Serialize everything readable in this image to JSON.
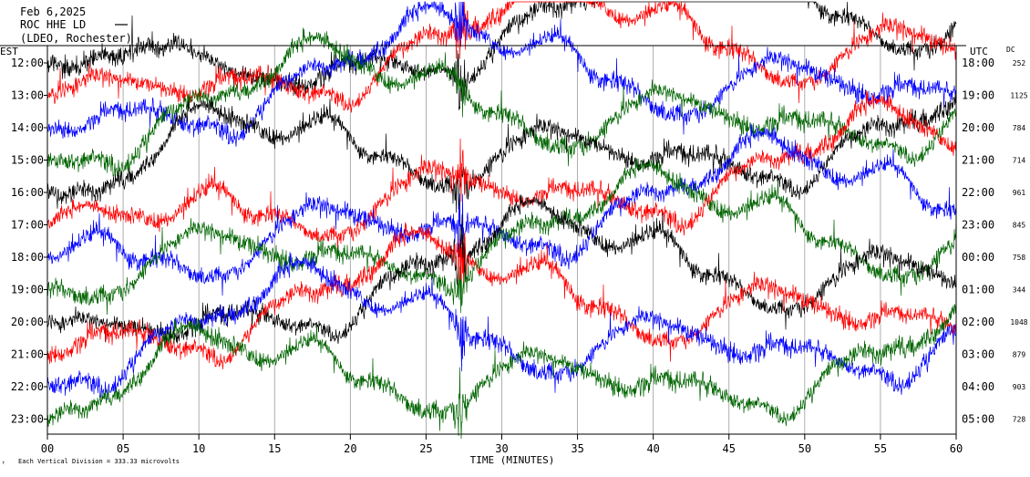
{
  "header": {
    "date": "Feb 6,2025",
    "station": "ROC HHE LD",
    "network": "(LDEO, Rochester)"
  },
  "labels": {
    "left_tz": "EST",
    "right_tz": "UTC",
    "dc_header": "DC",
    "x_axis_title": "TIME (MINUTES)",
    "scale_note": "Each Vertical Division = 333.33 microvolts"
  },
  "colors": {
    "black": "#000000",
    "red": "#ff0000",
    "blue": "#0000ff",
    "green": "#006400"
  },
  "chart_data": {
    "type": "line",
    "x_range_minutes": [
      0,
      60
    ],
    "x_ticks": [
      "00",
      "05",
      "10",
      "15",
      "20",
      "25",
      "30",
      "35",
      "40",
      "45",
      "50",
      "55",
      "60"
    ],
    "grid": "vertical-lines-every-5-minutes",
    "traces": [
      {
        "local_time": "12:00",
        "utc_time": "18:00",
        "dc": "252",
        "color": "black"
      },
      {
        "local_time": "13:00",
        "utc_time": "19:00",
        "dc": "1125",
        "color": "red"
      },
      {
        "local_time": "14:00",
        "utc_time": "20:00",
        "dc": "784",
        "color": "blue"
      },
      {
        "local_time": "15:00",
        "utc_time": "21:00",
        "dc": "714",
        "color": "green"
      },
      {
        "local_time": "16:00",
        "utc_time": "22:00",
        "dc": "961",
        "color": "black"
      },
      {
        "local_time": "17:00",
        "utc_time": "23:00",
        "dc": "845",
        "color": "red"
      },
      {
        "local_time": "18:00",
        "utc_time": "00:00",
        "dc": "758",
        "color": "blue"
      },
      {
        "local_time": "19:00",
        "utc_time": "01:00",
        "dc": "344",
        "color": "green"
      },
      {
        "local_time": "20:00",
        "utc_time": "02:00",
        "dc": "1048",
        "color": "black"
      },
      {
        "local_time": "21:00",
        "utc_time": "03:00",
        "dc": "879",
        "color": "red"
      },
      {
        "local_time": "22:00",
        "utc_time": "04:00",
        "dc": "903",
        "color": "blue"
      },
      {
        "local_time": "23:00",
        "utc_time": "05:00",
        "dc": "728",
        "color": "green"
      }
    ]
  }
}
